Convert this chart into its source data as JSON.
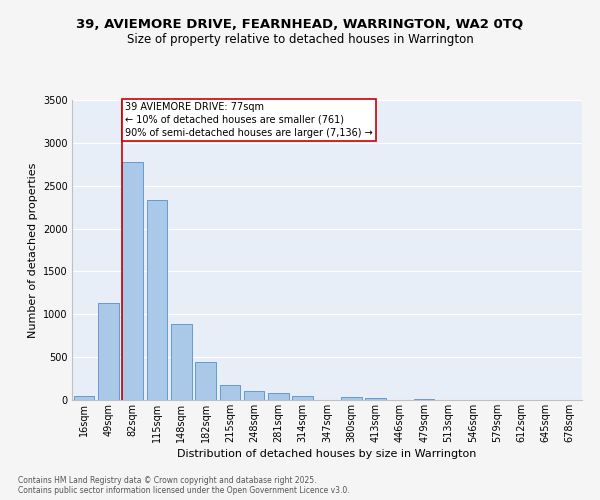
{
  "title_line1": "39, AVIEMORE DRIVE, FEARNHEAD, WARRINGTON, WA2 0TQ",
  "title_line2": "Size of property relative to detached houses in Warrington",
  "xlabel": "Distribution of detached houses by size in Warrington",
  "ylabel": "Number of detached properties",
  "categories": [
    "16sqm",
    "49sqm",
    "82sqm",
    "115sqm",
    "148sqm",
    "182sqm",
    "215sqm",
    "248sqm",
    "281sqm",
    "314sqm",
    "347sqm",
    "380sqm",
    "413sqm",
    "446sqm",
    "479sqm",
    "513sqm",
    "546sqm",
    "579sqm",
    "612sqm",
    "645sqm",
    "678sqm"
  ],
  "values": [
    50,
    1130,
    2780,
    2330,
    890,
    445,
    170,
    100,
    80,
    50,
    0,
    35,
    20,
    0,
    10,
    0,
    0,
    0,
    0,
    0,
    0
  ],
  "bar_color": "#aac8e8",
  "bar_edge_color": "#5590c8",
  "vline_color": "#cc0000",
  "vline_bar_idx": 2,
  "annotation_text": "39 AVIEMORE DRIVE: 77sqm\n← 10% of detached houses are smaller (761)\n90% of semi-detached houses are larger (7,136) →",
  "annotation_box_facecolor": "#ffffff",
  "annotation_box_edgecolor": "#cc0000",
  "ylim": [
    0,
    3500
  ],
  "yticks": [
    0,
    500,
    1000,
    1500,
    2000,
    2500,
    3000,
    3500
  ],
  "plot_bg_color": "#e8eef8",
  "fig_bg_color": "#f5f5f5",
  "grid_color": "#ffffff",
  "footer_line1": "Contains HM Land Registry data © Crown copyright and database right 2025.",
  "footer_line2": "Contains public sector information licensed under the Open Government Licence v3.0.",
  "title_fontsize": 9.5,
  "subtitle_fontsize": 8.5,
  "axis_label_fontsize": 8,
  "tick_fontsize": 7,
  "annotation_fontsize": 7,
  "footer_fontsize": 5.5
}
